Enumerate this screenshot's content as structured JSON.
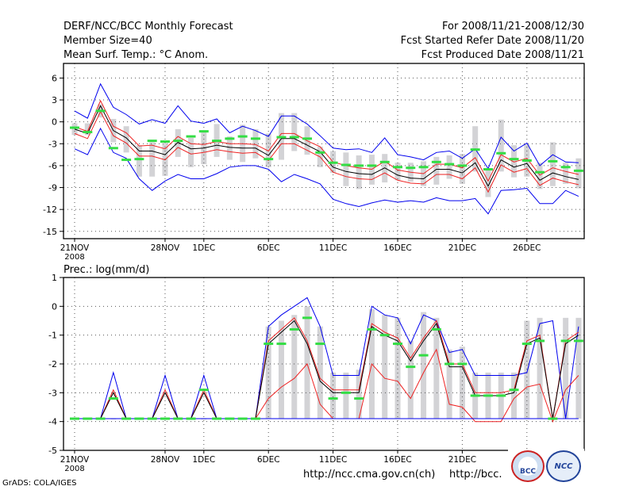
{
  "header": {
    "title": "DERF/NCC/BCC Monthly Forecast",
    "member": "Member Size=40",
    "variable": "Mean Surf. Temp.: °C Anom.",
    "period": "For 2008/11/21-2008/12/30",
    "started": "Fcst Started Refer Date 2008/11/20",
    "produced": "Fcst Produced Date 2008/11/21"
  },
  "footer": {
    "credit": "GrADS: COLA/IGES",
    "url1": "http://ncc.cma.gov.cn(ch)",
    "url2": "http://bcc.",
    "logo1": "BCC",
    "logo2": "NCC"
  },
  "colors": {
    "ensemble_range": "#d3d3d6",
    "member_mean": "#33dd44",
    "spread": "#0000ee",
    "mean_line": "#000000",
    "mean_band": "#ee2222"
  },
  "chart_data": [
    {
      "type": "line",
      "title": "Mean Surf. Temp.: °C Anom.",
      "ylim": [
        -16,
        8
      ],
      "yticks": [
        6,
        3,
        0,
        -3,
        -6,
        -9,
        -12,
        -15
      ],
      "xticks": [
        {
          "day": 0,
          "label": "21NOV",
          "sub": "2008"
        },
        {
          "day": 7,
          "label": "28NOV"
        },
        {
          "day": 10,
          "label": "1DEC"
        },
        {
          "day": 15,
          "label": "6DEC"
        },
        {
          "day": 20,
          "label": "11DEC"
        },
        {
          "day": 25,
          "label": "16DEC"
        },
        {
          "day": 30,
          "label": "21DEC"
        },
        {
          "day": 35,
          "label": "26DEC"
        }
      ],
      "days": [
        0,
        1,
        2,
        3,
        4,
        5,
        6,
        7,
        8,
        9,
        10,
        11,
        12,
        13,
        14,
        15,
        16,
        17,
        18,
        19,
        20,
        21,
        22,
        23,
        24,
        25,
        26,
        27,
        28,
        29,
        30,
        31,
        32,
        33,
        34,
        35,
        36,
        37,
        38,
        39
      ],
      "series": [
        {
          "name": "upper_spread",
          "color": "#0000ee",
          "values": [
            1.5,
            0.5,
            5.2,
            2,
            1,
            -0.3,
            0.3,
            -0.2,
            2.2,
            0.1,
            -0.2,
            0.4,
            -1.5,
            -0.6,
            -1.2,
            -2,
            0.8,
            0.8,
            -0.3,
            -1.9,
            -3.6,
            -3.8,
            -3.7,
            -4.2,
            -2.2,
            -4.5,
            -4.8,
            -5.2,
            -4.2,
            -4,
            -5,
            -3.7,
            -6.4,
            -2.1,
            -4,
            -2.9,
            -6,
            -4.5,
            -5.5,
            -5.6
          ]
        },
        {
          "name": "upper_band",
          "color": "#ee2222",
          "values": [
            -0.7,
            -1.3,
            2.9,
            -0.6,
            -1.5,
            -3.3,
            -3.2,
            -3.7,
            -2,
            -3,
            -3.1,
            -2.7,
            -3,
            -3,
            -3.1,
            -4,
            -1.6,
            -1.6,
            -2.6,
            -3.4,
            -5.5,
            -6,
            -6.3,
            -6.5,
            -5.4,
            -6.6,
            -6.9,
            -7.1,
            -5.8,
            -5.8,
            -6.3,
            -4.9,
            -8.1,
            -4.5,
            -5.5,
            -5,
            -7.3,
            -6.3,
            -6.8,
            -7.2
          ]
        },
        {
          "name": "ensemble_mean",
          "color": "#000000",
          "values": [
            -1,
            -1.6,
            2.2,
            -1.2,
            -2.2,
            -4,
            -4,
            -4.5,
            -2.8,
            -3.7,
            -3.6,
            -3.2,
            -3.5,
            -3.6,
            -3.6,
            -4.6,
            -2.3,
            -2.3,
            -3.2,
            -4.1,
            -6.2,
            -6.8,
            -7.1,
            -7.2,
            -6.3,
            -7.3,
            -7.7,
            -7.8,
            -6.5,
            -6.5,
            -7,
            -5.6,
            -8.8,
            -5.2,
            -6.2,
            -5.7,
            -8,
            -7,
            -7.5,
            -7.9
          ]
        },
        {
          "name": "lower_band",
          "color": "#ee2222",
          "values": [
            -1.6,
            -2.3,
            1.4,
            -1.9,
            -2.9,
            -4.7,
            -4.7,
            -5.2,
            -3.5,
            -4.4,
            -4.2,
            -3.8,
            -4.1,
            -4.3,
            -4.2,
            -5.3,
            -3,
            -3,
            -3.9,
            -4.8,
            -6.9,
            -7.5,
            -7.8,
            -7.9,
            -7,
            -8,
            -8.4,
            -8.5,
            -7.2,
            -7.2,
            -7.8,
            -6.3,
            -9.6,
            -5.9,
            -6.9,
            -6.4,
            -8.7,
            -7.7,
            -8.2,
            -8.6
          ]
        },
        {
          "name": "lower_spread",
          "color": "#0000ee",
          "values": [
            -3.7,
            -4.5,
            -0.9,
            -4.2,
            -5,
            -7.8,
            -9.4,
            -8.1,
            -7.2,
            -7.8,
            -7.8,
            -7.1,
            -6.2,
            -6,
            -6,
            -6.5,
            -8.2,
            -7.2,
            -7.8,
            -8.5,
            -10.6,
            -11.2,
            -11.6,
            -11.1,
            -10.7,
            -11,
            -10.8,
            -11,
            -10.4,
            -10.8,
            -10.8,
            -10.5,
            -12.6,
            -9.4,
            -9.3,
            -9.1,
            -11.2,
            -11.2,
            -9.4,
            -10.2
          ]
        }
      ],
      "range_bars": {
        "low": [
          -1.8,
          -1.8,
          0.6,
          -2.8,
          -4.2,
          -7.5,
          -7.5,
          -7.4,
          -4.8,
          -6.2,
          -5.8,
          -4.8,
          -5.2,
          -5.5,
          -5,
          -6.2,
          -5.2,
          -4,
          -4.5,
          -6.2,
          -7,
          -8.8,
          -9.2,
          -8.6,
          -8.3,
          -8,
          -8.2,
          -8.8,
          -8.6,
          -7.8,
          -8.5,
          -6.8,
          -10.3,
          -6.8,
          -7.6,
          -7.5,
          -9.2,
          -8.8,
          -8.5,
          -9.1
        ],
        "high": [
          -0.2,
          -0.2,
          2.4,
          0.4,
          -0.6,
          -3.2,
          -2.8,
          -3,
          -1,
          -2.2,
          -1.4,
          -0.3,
          -2,
          -0.4,
          -1,
          -1.6,
          1.2,
          1.2,
          -0.6,
          -3.4,
          -4,
          -4.2,
          -4.6,
          -4.5,
          -4.4,
          -5.6,
          -5.6,
          -5.4,
          -4.8,
          -4.6,
          -4.4,
          -0.6,
          -6.4,
          0.3,
          -3.2,
          -3.1,
          -5.6,
          -2.8,
          -5.6,
          -5
        ]
      },
      "member_marks": [
        -0.8,
        -1.4,
        1.5,
        -3.6,
        -5.2,
        -5.1,
        -2.6,
        -2.7,
        -2.6,
        -2,
        -1.3,
        -2.6,
        -2.3,
        -2,
        -2.3,
        -5.1,
        -2.1,
        -2.1,
        -2.3,
        -4.2,
        -5.6,
        -5.9,
        -6,
        -6,
        -5.5,
        -6.2,
        -6.3,
        -6.2,
        -5.5,
        -5.8,
        -6,
        -3.8,
        -6.5,
        -4.3,
        -5.1,
        -5.3,
        -6.9,
        -5.4,
        -6.2,
        -6.7
      ]
    },
    {
      "type": "line",
      "title": "Prec.: log(mm/d)",
      "ylim": [
        -5,
        1
      ],
      "yticks": [
        1,
        0,
        -1,
        -2,
        -3,
        -4,
        -5
      ],
      "xticks": [
        {
          "day": 0,
          "label": "21NOV",
          "sub": "2008"
        },
        {
          "day": 7,
          "label": "28NOV"
        },
        {
          "day": 10,
          "label": "1DEC"
        },
        {
          "day": 15,
          "label": "6DEC"
        },
        {
          "day": 20,
          "label": "11DEC"
        },
        {
          "day": 25,
          "label": "16DEC"
        },
        {
          "day": 30,
          "label": "21DEC"
        },
        {
          "day": 35,
          "label": "26DEC"
        }
      ],
      "days": [
        0,
        1,
        2,
        3,
        4,
        5,
        6,
        7,
        8,
        9,
        10,
        11,
        12,
        13,
        14,
        15,
        16,
        17,
        18,
        19,
        20,
        21,
        22,
        23,
        24,
        25,
        26,
        27,
        28,
        29,
        30,
        31,
        32,
        33,
        34,
        35,
        36,
        37,
        38,
        39
      ],
      "series": [
        {
          "name": "upper_spread",
          "color": "#0000ee",
          "values": [
            -3.9,
            -3.9,
            -3.9,
            -2.3,
            -3.9,
            -3.9,
            -3.9,
            -2.4,
            -3.9,
            -3.9,
            -2.4,
            -3.9,
            -3.9,
            -3.9,
            -3.9,
            -0.7,
            -0.3,
            0,
            0.3,
            -0.7,
            -2.4,
            -2.4,
            -2.4,
            0,
            -0.3,
            -0.4,
            -1.3,
            -0.3,
            -0.5,
            -1.6,
            -1.5,
            -2.4,
            -2.4,
            -2.4,
            -2.4,
            -2.3,
            -0.6,
            -0.5,
            -3.9,
            -0.7
          ]
        },
        {
          "name": "upper_band",
          "color": "#ee2222",
          "values": [
            -3.9,
            -3.9,
            -3.9,
            -2.9,
            -3.9,
            -3.9,
            -3.9,
            -2.9,
            -3.9,
            -3.9,
            -2.9,
            -3.9,
            -3.9,
            -3.9,
            -3.9,
            -1.2,
            -0.8,
            -0.4,
            -1.2,
            -2.5,
            -2.9,
            -2.9,
            -2.9,
            -0.6,
            -0.9,
            -1.1,
            -1.8,
            -1.1,
            -0.5,
            -2,
            -2,
            -3,
            -3,
            -3,
            -2.9,
            -1.2,
            -1,
            -3.9,
            -1.2,
            -0.9
          ]
        },
        {
          "name": "ensemble_mean",
          "color": "#000000",
          "values": [
            -3.9,
            -3.9,
            -3.9,
            -3,
            -3.9,
            -3.9,
            -3.9,
            -3,
            -3.9,
            -3.9,
            -3,
            -3.9,
            -3.9,
            -3.9,
            -3.9,
            -1.3,
            -0.9,
            -0.5,
            -1.3,
            -2.6,
            -3,
            -3,
            -3,
            -0.7,
            -1,
            -1.2,
            -1.9,
            -1.2,
            -0.6,
            -2.1,
            -2.1,
            -3.1,
            -3.1,
            -3.1,
            -3,
            -1.3,
            -1.1,
            -3.9,
            -1.3,
            -1
          ]
        },
        {
          "name": "lower_band",
          "color": "#ee2222",
          "values": [
            -3.9,
            -3.9,
            -3.9,
            -3.9,
            -3.9,
            -3.9,
            -3.9,
            -3.9,
            -3.9,
            -3.9,
            -3.9,
            -3.9,
            -3.9,
            -3.9,
            -3.9,
            -3.2,
            -2.8,
            -2.5,
            -2,
            -3.4,
            -3.9,
            -3.9,
            -3.9,
            -2,
            -2.5,
            -2.6,
            -3.2,
            -2.3,
            -1.5,
            -3.4,
            -3.5,
            -4,
            -4,
            -4,
            -3.2,
            -2.8,
            -2.7,
            -4,
            -2.9,
            -2.4
          ]
        },
        {
          "name": "lower_spread",
          "color": "#0000ee",
          "values": [
            -3.9,
            -3.9,
            -3.9,
            -3.9,
            -3.9,
            -3.9,
            -3.9,
            -3.9,
            -3.9,
            -3.9,
            -3.9,
            -3.9,
            -3.9,
            -3.9,
            -3.9,
            -3.9,
            -3.9,
            -3.9,
            -3.9,
            -3.9,
            -3.9,
            -3.9,
            -3.9,
            -3.9,
            -3.9,
            -3.9,
            -3.9,
            -3.9,
            -3.9,
            -3.9,
            -3.9,
            -3.9,
            -3.9,
            -3.9,
            -3.9,
            -3.9,
            -3.9,
            -3.9,
            -3.9,
            -3.9
          ]
        }
      ],
      "range_bars": {
        "low": [
          -3.9,
          -3.9,
          -3.9,
          -3.9,
          -3.9,
          -3.9,
          -3.9,
          -3.9,
          -3.9,
          -3.9,
          -3.9,
          -3.9,
          -3.9,
          -3.9,
          -3.9,
          -3.9,
          -3.9,
          -3.9,
          -3.9,
          -3.9,
          -3.9,
          -3.9,
          -3.9,
          -3.9,
          -3.9,
          -3.9,
          -3.9,
          -3.9,
          -3.9,
          -3.9,
          -3.9,
          -3.9,
          -3.9,
          -3.9,
          -3.9,
          -3.9,
          -3.9,
          -3.9,
          -3.9,
          -3.9
        ],
        "high": [
          -3.9,
          -3.9,
          -3.9,
          -3.9,
          -3.9,
          -3.9,
          -3.9,
          -3.9,
          -3.9,
          -3.9,
          -3.9,
          -3.9,
          -3.9,
          -3.9,
          -3.9,
          -0.7,
          -0.5,
          -0.3,
          0,
          -0.7,
          -2.3,
          -2.3,
          -2.2,
          -0.1,
          -0.3,
          -0.4,
          -1.2,
          -0.2,
          -0.4,
          -1.5,
          -1.4,
          -2.3,
          -2.3,
          -2.3,
          -2.3,
          -0.5,
          -0.4,
          -3.9,
          -0.4,
          -0.4
        ]
      },
      "member_marks": [
        -3.9,
        -3.9,
        -3.9,
        -3.2,
        -3.9,
        -3.9,
        -3.9,
        -3.9,
        -3.9,
        -3.9,
        -2.9,
        -3.9,
        -3.9,
        -3.9,
        -3.9,
        -1.3,
        -1.3,
        -0.8,
        -0.4,
        -1.3,
        -3.2,
        -3,
        -3.2,
        -0.8,
        -1,
        -1.3,
        -2.1,
        -1.7,
        -0.8,
        -2,
        -2,
        -3.1,
        -3.1,
        -3.1,
        -2.9,
        -1.3,
        -1.2,
        -3.9,
        -1.2,
        -1.2
      ]
    }
  ]
}
